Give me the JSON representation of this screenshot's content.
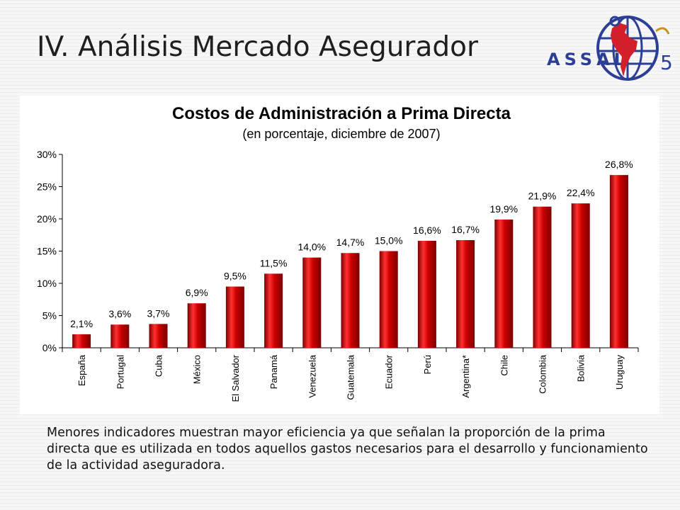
{
  "slide": {
    "title": "IV. Análisis Mercado Asegurador",
    "logo_text": "ASSAL",
    "caption": "Menores indicadores muestran mayor eficiencia ya que señalan la proporción de la prima directa que es utilizada en todos aquellos gastos necesarios para el desarrollo y funcionamiento de la actividad aseguradora."
  },
  "colors": {
    "bar": "#cc0000",
    "bar_highlight": "#ff3030",
    "bar_shadow": "#7a0000",
    "logo_blue": "#2d3f95",
    "logo_red": "#d21f2b",
    "logo_gold": "#c8911e"
  },
  "chart_data": {
    "type": "bar",
    "title": "Costos de Administración a Prima Directa",
    "subtitle": "(en porcentaje, diciembre de 2007)",
    "categories": [
      "España",
      "Portugal",
      "Cuba",
      "México",
      "El Salvador",
      "Panamá",
      "Venezuela",
      "Guatemala",
      "Ecuador",
      "Perú",
      "Argentina*",
      "Chile",
      "Colombia",
      "Bolivia",
      "Uruguay"
    ],
    "values": [
      2.1,
      3.6,
      3.7,
      6.9,
      9.5,
      11.5,
      14.0,
      14.7,
      15.0,
      16.6,
      16.7,
      19.9,
      21.9,
      22.4,
      26.8
    ],
    "value_labels": [
      "2,1%",
      "3,6%",
      "3,7%",
      "6,9%",
      "9,5%",
      "11,5%",
      "14,0%",
      "14,7%",
      "15,0%",
      "16,6%",
      "16,7%",
      "19,9%",
      "21,9%",
      "22,4%",
      "26,8%"
    ],
    "ylim": [
      0,
      30
    ],
    "yticks": [
      0,
      5,
      10,
      15,
      20,
      25,
      30
    ],
    "ytick_labels": [
      "0%",
      "5%",
      "10%",
      "15%",
      "20%",
      "25%",
      "30%"
    ],
    "xlabel": "",
    "ylabel": "",
    "grid": false,
    "legend": "none"
  }
}
